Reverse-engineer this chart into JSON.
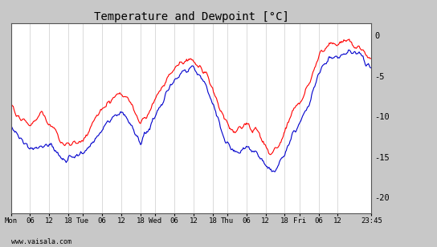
{
  "title": "Temperature and Dewpoint [°C]",
  "title_fontsize": 10,
  "bg_color": "#c8c8c8",
  "plot_bg_color": "#ffffff",
  "temp_color": "#ff0000",
  "dewpoint_color": "#0000cc",
  "yticks": [
    0,
    -5,
    -10,
    -15,
    -20
  ],
  "ylim": [
    -22,
    1.5
  ],
  "grid_color": "#cccccc",
  "line_width": 0.8,
  "footer_text": "www.vaisala.com",
  "xtick_labels": [
    "Mon",
    "06",
    "12",
    "18",
    "Tue",
    "06",
    "12",
    "18",
    "Wed",
    "06",
    "12",
    "18",
    "Thu",
    "06",
    "12",
    "18",
    "Fri",
    "06",
    "12",
    "23:45"
  ],
  "xtick_positions": [
    0,
    25,
    50,
    75,
    94,
    119,
    144,
    169,
    188,
    213,
    238,
    263,
    282,
    307,
    332,
    357,
    376,
    401,
    426,
    470
  ],
  "n_points": 470,
  "temp_x": [
    0,
    5,
    15,
    25,
    40,
    50,
    65,
    75,
    94,
    105,
    120,
    135,
    144,
    158,
    169,
    185,
    188,
    205,
    220,
    235,
    238,
    248,
    258,
    268,
    275,
    282,
    290,
    298,
    307,
    312,
    318,
    323,
    330,
    338,
    345,
    350,
    357,
    365,
    376,
    390,
    405,
    415,
    426,
    440,
    455,
    465,
    470
  ],
  "temp_y": [
    -8.5,
    -9.5,
    -10.5,
    -11,
    -9.5,
    -11,
    -13,
    -13.5,
    -13,
    -11,
    -9,
    -7.5,
    -7,
    -8.5,
    -11,
    -8.5,
    -8,
    -5,
    -3.5,
    -3,
    -3,
    -4,
    -5.5,
    -8,
    -9.5,
    -11,
    -12,
    -11.5,
    -11,
    -11.5,
    -11.5,
    -12,
    -13.5,
    -14.5,
    -14,
    -13.5,
    -12,
    -9.5,
    -8.5,
    -5.5,
    -2,
    -1,
    -1,
    -0.5,
    -1.5,
    -2.5,
    -3
  ],
  "dew_x": [
    0,
    5,
    15,
    25,
    35,
    50,
    65,
    75,
    94,
    108,
    122,
    135,
    144,
    158,
    169,
    185,
    188,
    208,
    225,
    238,
    250,
    262,
    272,
    280,
    288,
    298,
    307,
    313,
    320,
    328,
    337,
    344,
    350,
    357,
    368,
    376,
    390,
    405,
    415,
    426,
    440,
    455,
    465,
    470
  ],
  "dew_y": [
    -11,
    -12,
    -13,
    -14,
    -14,
    -13.5,
    -15,
    -15.5,
    -14.5,
    -13,
    -11,
    -10,
    -9.5,
    -11,
    -13.5,
    -10.5,
    -10,
    -6,
    -4.5,
    -4,
    -5.5,
    -8,
    -11,
    -13,
    -14,
    -14.5,
    -13.5,
    -14,
    -14.5,
    -15.5,
    -16.5,
    -17,
    -15.5,
    -14.5,
    -12,
    -11,
    -8,
    -4,
    -3,
    -2.5,
    -2,
    -2.5,
    -3.5,
    -4
  ]
}
